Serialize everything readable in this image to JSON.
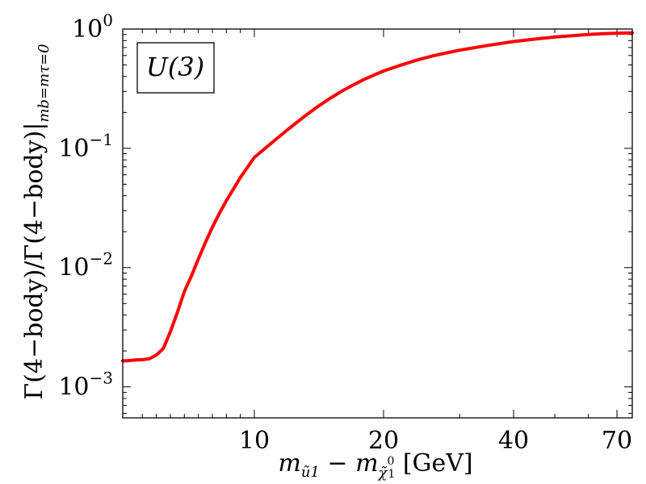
{
  "chart_data": {
    "type": "line",
    "xlabel": "m_{ũ1} − m_{χ̃⁰1} [GeV]",
    "ylabel": "Γ(4−body)/Γ(4−body)|mb=mτ=0",
    "xlabel_parts": {
      "m1": "m",
      "sub1": "ũ1",
      "minus": " − ",
      "m2": "m",
      "sub2": "χ̃",
      "sup2": "0",
      "sub2b": "1",
      "unit": " [GeV]"
    },
    "ylabel_parts": {
      "main": "Γ(4−body)/Γ(4−body)|",
      "sub": "mb=mτ=0"
    },
    "xlim": [
      0.6,
      71
    ],
    "ylim": [
      0.00055,
      1.0
    ],
    "xscale": "custom-compressed",
    "yscale": "log",
    "x_ticks": [
      {
        "value": 10,
        "label": "10"
      },
      {
        "value": 20,
        "label": "20"
      },
      {
        "value": 40,
        "label": "40"
      },
      {
        "value": 70,
        "label": "70"
      }
    ],
    "y_ticks": [
      {
        "value": 0.001,
        "base": "10",
        "exp": "−3"
      },
      {
        "value": 0.01,
        "base": "10",
        "exp": "−2"
      },
      {
        "value": 0.1,
        "base": "10",
        "exp": "−1"
      },
      {
        "value": 1.0,
        "base": "10",
        "exp": "0"
      }
    ],
    "legend": {
      "text": "U(3)",
      "placement": "top-left"
    },
    "series": [
      {
        "color": "#ff0000",
        "x": [
          0.6,
          1.0,
          1.5,
          2.0,
          2.5,
          3.0,
          3.5,
          4.0,
          4.5,
          5.0,
          5.5,
          6.0,
          6.5,
          7.0,
          7.5,
          8.0,
          9.0,
          10.0,
          11.0,
          12.0,
          13.0,
          14.0,
          15.0,
          16.0,
          17.0,
          18.0,
          19.0,
          20.0,
          22.0,
          24.0,
          26.0,
          28.0,
          30.0,
          35.0,
          40.0,
          45.0,
          50.0,
          55.0,
          60.0,
          65.0,
          71.0
        ],
        "y": [
          0.00165,
          0.00166,
          0.00168,
          0.00169,
          0.00172,
          0.00185,
          0.0021,
          0.0029,
          0.0042,
          0.0063,
          0.0085,
          0.0118,
          0.0162,
          0.0218,
          0.0284,
          0.0363,
          0.057,
          0.084,
          0.112,
          0.145,
          0.182,
          0.222,
          0.262,
          0.302,
          0.34,
          0.377,
          0.411,
          0.445,
          0.5,
          0.552,
          0.595,
          0.632,
          0.665,
          0.73,
          0.785,
          0.825,
          0.857,
          0.88,
          0.9,
          0.915,
          0.93
        ]
      }
    ]
  }
}
